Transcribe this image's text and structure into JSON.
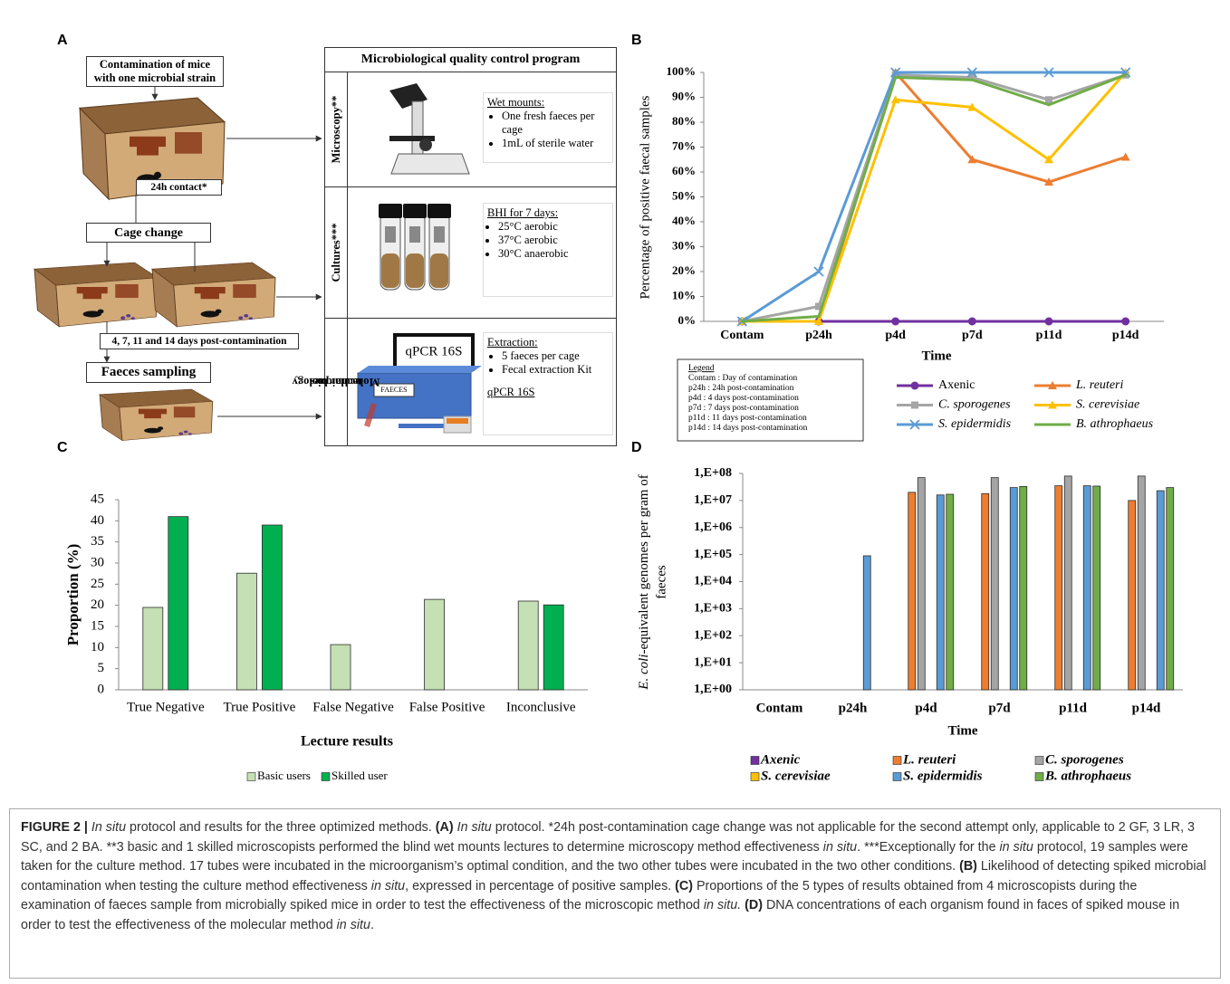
{
  "panel_labels": [
    "A",
    "B",
    "C",
    "D"
  ],
  "panel_a": {
    "steps": {
      "contamination": [
        "Contamination of mice",
        "with one microbial strain"
      ],
      "contact": "24h contact*",
      "cage_change": "Cage change",
      "days": "4, 7, 11 and 14 days post-contamination",
      "sampling": "Faeces sampling"
    },
    "program": {
      "title": "Microbiological quality control program",
      "rows": [
        {
          "method": [
            "Microscopy**"
          ],
          "heading": "Wet mounts:",
          "items": [
            "One fresh faeces per cage",
            "1mL of sterile water"
          ]
        },
        {
          "method": [
            "Cultures***"
          ],
          "heading": "BHI for 7 days:",
          "items": [
            "25°C aerobic",
            "37°C aerobic",
            "30°C anaerobic"
          ]
        },
        {
          "method": [
            "Molecular biology",
            "techniques"
          ],
          "heading": "Extraction:",
          "items": [
            "5 faeces per cage",
            "Fecal extraction Kit"
          ],
          "footer": "qPCR 16S"
        }
      ],
      "image_labels": {
        "monitor": "qPCR 16S",
        "box": "FAECES"
      }
    }
  },
  "chart_data": [
    {
      "type": "line",
      "ylabel": "Percentage of positive faecal samples",
      "xlabel": "Time",
      "categories": [
        "Contam",
        "p24h",
        "p4d",
        "p7d",
        "p11d",
        "p14d"
      ],
      "ylim": [
        0,
        100
      ],
      "yticks": [
        {
          "value": 0,
          "label": "0%"
        },
        {
          "value": 10,
          "label": "10%"
        },
        {
          "value": 20,
          "label": "20%"
        },
        {
          "value": 30,
          "label": "30%"
        },
        {
          "value": 40,
          "label": "40%"
        },
        {
          "value": 50,
          "label": "50%"
        },
        {
          "value": 60,
          "label": "60%"
        },
        {
          "value": 70,
          "label": "70%"
        },
        {
          "value": 80,
          "label": "80%"
        },
        {
          "value": 90,
          "label": "90%"
        },
        {
          "value": 100,
          "label": "100%"
        }
      ],
      "grid": false,
      "series": [
        {
          "name": "Axenic",
          "color": "#7030a0",
          "marker": "circle",
          "values": [
            0,
            0,
            0,
            0,
            0,
            0
          ]
        },
        {
          "name": "L. reuteri",
          "color": "#ed7d31",
          "marker": "triangle",
          "values": [
            0,
            0,
            100,
            65,
            56,
            66
          ]
        },
        {
          "name": "C. sporogenes",
          "color": "#a5a5a5",
          "marker": "square",
          "values": [
            0,
            6,
            99,
            98,
            89,
            99
          ]
        },
        {
          "name": "S. cerevisiae",
          "color": "#ffc000",
          "marker": "triangle",
          "values": [
            0,
            0,
            89,
            86,
            65,
            100
          ]
        },
        {
          "name": "S. epidermidis",
          "color": "#5b9bd5",
          "marker": "cross",
          "values": [
            0,
            20,
            100,
            100,
            100,
            100
          ]
        },
        {
          "name": "B. athrophaeus",
          "color": "#70ad47",
          "marker": "none",
          "values": [
            0,
            2,
            98,
            97,
            87,
            99
          ]
        }
      ],
      "abbreviations": {
        "title": "Legend",
        "lines": [
          "Contam : Day of contamination",
          "p24h : 24h post-contamination",
          "p4d : 4 days post-contamination",
          "p7d : 7 days post-contamination",
          "p11d : 11 days post-contamination",
          "p14d : 14 days post-contamination"
        ]
      }
    },
    {
      "type": "bar",
      "ylabel": "Proportion (%)",
      "xlabel": "Lecture results",
      "categories": [
        "True Negative",
        "True Positive",
        "False Negative",
        "False Positive",
        "Inconclusive"
      ],
      "ylim": [
        0,
        45
      ],
      "yticks": [
        0,
        5,
        10,
        15,
        20,
        25,
        30,
        35,
        40,
        45
      ],
      "grid": false,
      "legend": "bottom",
      "series": [
        {
          "name": "Basic users",
          "color": "#c5e0b4",
          "values": [
            19.5,
            27.6,
            10.7,
            21.4,
            21.0
          ]
        },
        {
          "name": "Skilled user",
          "color": "#00b050",
          "values": [
            41,
            39,
            0,
            0,
            20.1
          ]
        }
      ]
    },
    {
      "type": "bar",
      "log": true,
      "ylabel": [
        "E. coli",
        "-equivalent genomes per gram of",
        "faeces"
      ],
      "xlabel": "Time",
      "categories": [
        "Contam",
        "p24h",
        "p4d",
        "p7d",
        "p11d",
        "p14d"
      ],
      "ylim": [
        1,
        100000000
      ],
      "yticks": [
        {
          "value": 1,
          "label": "1,E+00"
        },
        {
          "value": 10,
          "label": "1,E+01"
        },
        {
          "value": 100,
          "label": "1,E+02"
        },
        {
          "value": 1000,
          "label": "1,E+03"
        },
        {
          "value": 10000,
          "label": "1,E+04"
        },
        {
          "value": 100000,
          "label": "1,E+05"
        },
        {
          "value": 1000000,
          "label": "1,E+06"
        },
        {
          "value": 10000000,
          "label": "1,E+07"
        },
        {
          "value": 100000000,
          "label": "1,E+08"
        }
      ],
      "grid": false,
      "legend": "bottom",
      "series": [
        {
          "name": "Axenic",
          "color": "#7030a0",
          "values": [
            null,
            null,
            null,
            null,
            null,
            null
          ]
        },
        {
          "name": "L. reuteri",
          "color": "#ed7d31",
          "values": [
            null,
            null,
            20000000,
            18000000,
            35000000,
            10000000
          ]
        },
        {
          "name": "C. sporogenes",
          "color": "#a5a5a5",
          "values": [
            null,
            null,
            70000000,
            70000000,
            80000000,
            80000000
          ]
        },
        {
          "name": "S. cerevisiae",
          "color": "#ffc000",
          "values": [
            null,
            null,
            null,
            null,
            null,
            null
          ]
        },
        {
          "name": "S. epidermidis",
          "color": "#5b9bd5",
          "values": [
            null,
            90000,
            16000000,
            30000000,
            35000000,
            23000000
          ]
        },
        {
          "name": "B. athrophaeus",
          "color": "#70ad47",
          "values": [
            null,
            null,
            17000000,
            33000000,
            34000000,
            30000000
          ]
        }
      ]
    }
  ],
  "caption": {
    "segments": [
      "FIGURE 2 |",
      " In situ",
      " protocol and results for the three optimized methods. ",
      "(A)",
      " In situ",
      " protocol. *24h post-contamination cage change was not applicable for the second attempt only, applicable to 2 GF, 3 LR, 3 SC, and 2 BA. **3 basic and 1 skilled microscopists performed the blind wet mounts lectures to determine microscopy method effectiveness ",
      "in situ",
      ". ***Exceptionally for the ",
      "in situ",
      " protocol, 19 samples were taken for the culture method. 17 tubes were incubated in the microorganism’s optimal condition, and the two other tubes were incubated in the two other conditions. ",
      "(B)",
      " Likelihood of detecting spiked microbial contamination when testing the culture method effectiveness ",
      "in situ",
      ", expressed in percentage of positive samples. ",
      "(C)",
      " Proportions of the 5 types of results obtained from 4 microscopists during the examination of faeces sample from microbially spiked mice in order to test the effectiveness of the microscopic method ",
      "in situ. ",
      "(D)",
      " DNA concentrations of each organism found in faces of spiked mouse in order to test the effectiveness of the molecular method ",
      "in situ",
      "."
    ]
  }
}
